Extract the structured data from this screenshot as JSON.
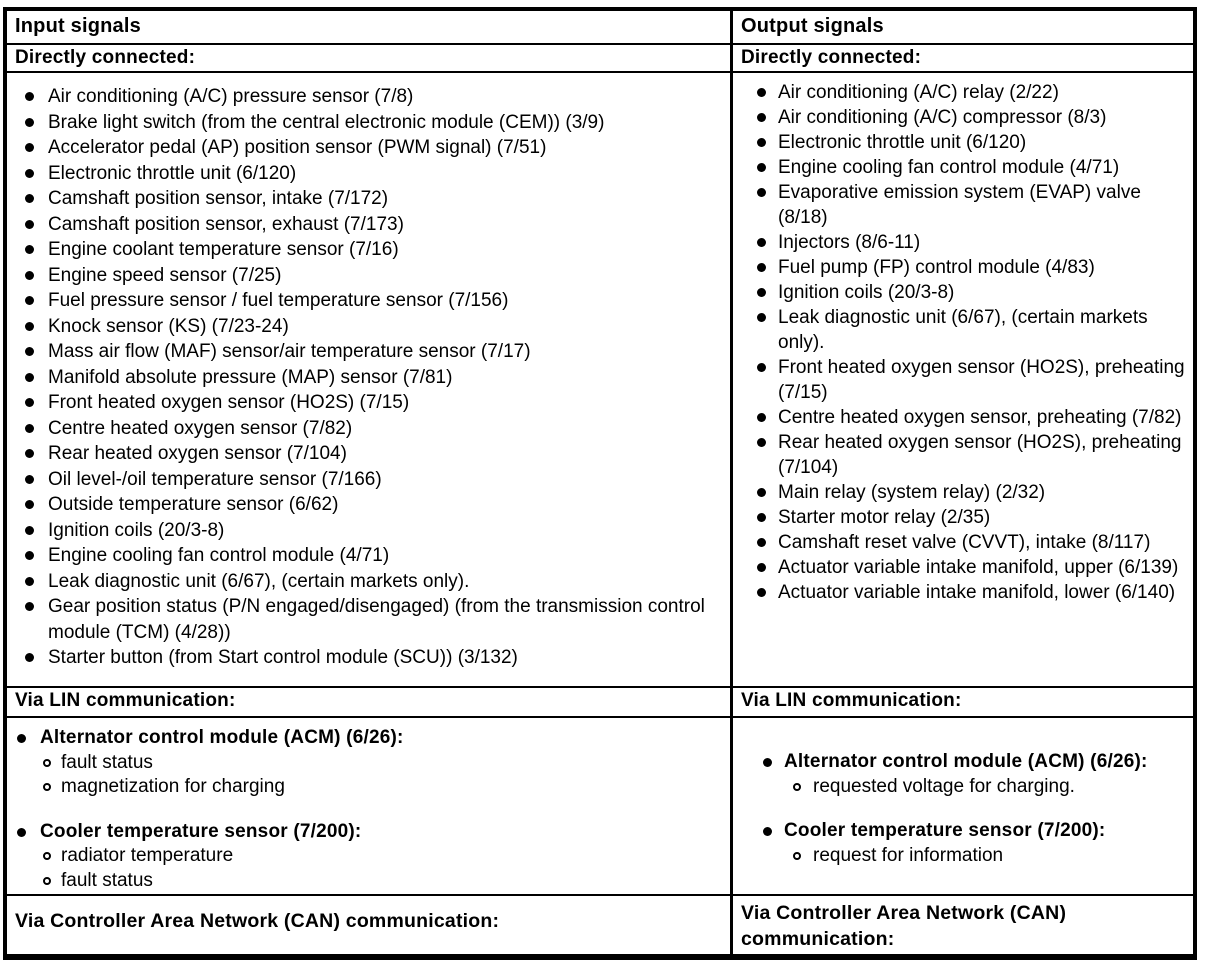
{
  "input_column": {
    "header": "Input signals",
    "directly_connected_title": "Directly connected:",
    "directly_connected_items": [
      "Air conditioning (A/C) pressure sensor (7/8)",
      "Brake light switch (from the central electronic module (CEM)) (3/9)",
      "Accelerator pedal (AP) position sensor (PWM signal) (7/51)",
      "Electronic throttle unit (6/120)",
      "Camshaft position sensor, intake (7/172)",
      "Camshaft position sensor, exhaust (7/173)",
      "Engine coolant temperature sensor (7/16)",
      "Engine speed sensor (7/25)",
      "Fuel pressure sensor / fuel temperature sensor (7/156)",
      "Knock sensor (KS) (7/23-24)",
      "Mass air flow (MAF) sensor/air temperature sensor (7/17)",
      "Manifold absolute pressure (MAP) sensor (7/81)",
      "Front heated oxygen sensor (HO2S) (7/15)",
      "Centre heated oxygen sensor (7/82)",
      "Rear heated oxygen sensor (7/104)",
      "Oil level-/oil temperature sensor (7/166)",
      "Outside temperature sensor (6/62)",
      "Ignition coils (20/3-8)",
      "Engine cooling fan control module (4/71)",
      "Leak diagnostic unit (6/67), (certain markets only).",
      "Gear position status (P/N engaged/disengaged) (from the transmission control module (TCM) (4/28))",
      "Starter button (from Start control module (SCU)) (3/132)"
    ],
    "lin_title": "Via LIN communication:",
    "lin_groups": [
      {
        "label": "Alternator control module (ACM) (6/26):",
        "subitems": [
          "fault status",
          "magnetization for charging"
        ]
      },
      {
        "label": "Cooler temperature sensor (7/200):",
        "subitems": [
          "radiator temperature",
          "fault status"
        ]
      }
    ],
    "can_title": "Via Controller Area Network (CAN) communication:"
  },
  "output_column": {
    "header": "Output signals",
    "directly_connected_title": "Directly connected:",
    "directly_connected_items": [
      "Air conditioning (A/C) relay (2/22)",
      "Air conditioning (A/C) compressor (8/3)",
      "Electronic throttle unit (6/120)",
      "Engine cooling fan control module (4/71)",
      "Evaporative emission system (EVAP) valve (8/18)",
      "Injectors (8/6-11)",
      "Fuel pump (FP) control module (4/83)",
      "Ignition coils (20/3-8)",
      "Leak diagnostic unit (6/67), (certain markets only).",
      "Front heated oxygen sensor (HO2S), preheating (7/15)",
      "Centre heated oxygen sensor, preheating (7/82)",
      "Rear heated oxygen sensor (HO2S), preheating (7/104)",
      "Main relay (system relay) (2/32)",
      "Starter motor relay (2/35)",
      "Camshaft reset valve (CVVT), intake (8/117)",
      "Actuator variable intake manifold, upper (6/139)",
      "Actuator variable intake manifold, lower (6/140)"
    ],
    "lin_title": "Via LIN communication:",
    "lin_groups": [
      {
        "label": "Alternator control module (ACM) (6/26):",
        "subitems": [
          "requested voltage for charging."
        ]
      },
      {
        "label": "Cooler temperature sensor (7/200):",
        "subitems": [
          "request for information"
        ]
      }
    ],
    "can_title": "Via Controller Area Network (CAN) communication:"
  },
  "colors": {
    "ink": "#000000",
    "paper": "#ffffff"
  }
}
